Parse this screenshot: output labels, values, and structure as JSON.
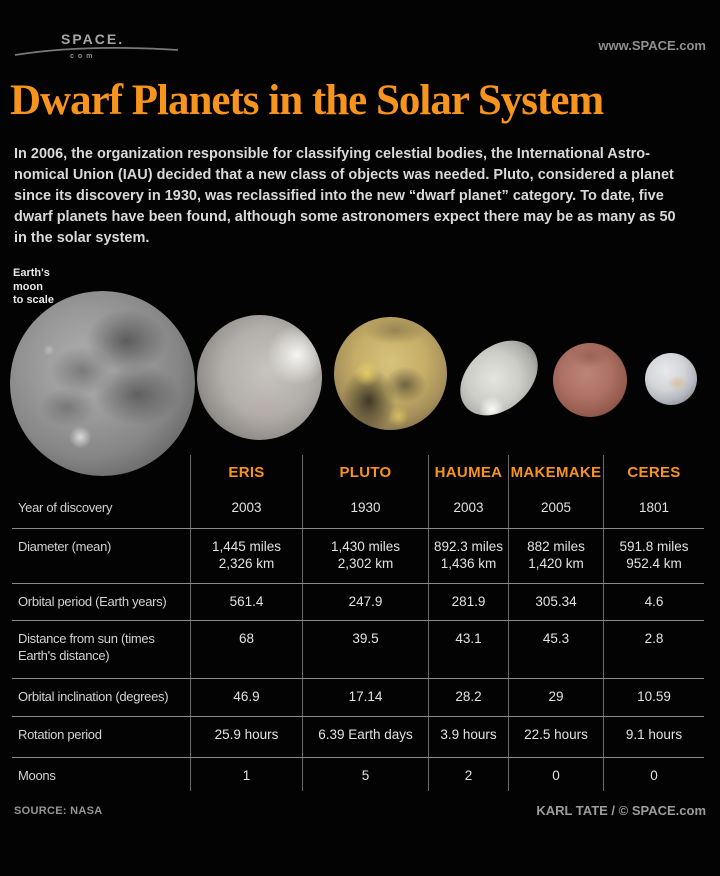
{
  "colors": {
    "background": "#030303",
    "accent_orange": "#f7941e",
    "body_text": "#d9d9d9",
    "table_line_horizontal": "#8a8a8a",
    "table_line_vertical": "#6b6b6b"
  },
  "masthead": {
    "logo_text": "SPACE.",
    "logo_sub": "com",
    "site_url": "www.SPACE.com"
  },
  "title": "Dwarf Planets in the Solar System",
  "intro_lines": [
    "In 2006, the organization responsible for classifying celestial bodies, the International Astro-",
    "nomical Union (IAU) decided that a new class of objects was needed. Pluto, considered a planet",
    "since its discovery in 1930, was reclassified into the new “dwarf planet” category. To date, five",
    "dwarf planets have been found, although some astronomers expect there may be as many as 50",
    "in the solar system."
  ],
  "figures": {
    "note_lines": [
      "Earth's",
      "moon",
      "to scale"
    ],
    "items": [
      "Earth's moon",
      "Eris",
      "Pluto",
      "Haumea",
      "Makemake",
      "Ceres"
    ]
  },
  "table": {
    "columns": [
      "ERIS",
      "PLUTO",
      "HAUMEA",
      "MAKEMAKE",
      "CERES"
    ],
    "rows": [
      {
        "label_lines": [
          "Year of discovery"
        ],
        "values": [
          [
            "2003"
          ],
          [
            "1930"
          ],
          [
            "2003"
          ],
          [
            "2005"
          ],
          [
            "1801"
          ]
        ]
      },
      {
        "label_lines": [
          "Diameter (mean)"
        ],
        "values": [
          [
            "1,445 miles",
            "2,326 km"
          ],
          [
            "1,430 miles",
            "2,302 km"
          ],
          [
            "892.3 miles",
            "1,436 km"
          ],
          [
            "882 miles",
            "1,420 km"
          ],
          [
            "591.8 miles",
            "952.4 km"
          ]
        ]
      },
      {
        "label_lines": [
          "Orbital period (Earth years)"
        ],
        "values": [
          [
            "561.4"
          ],
          [
            "247.9"
          ],
          [
            "281.9"
          ],
          [
            "305.34"
          ],
          [
            "4.6"
          ]
        ]
      },
      {
        "label_lines": [
          "Distance from sun (times",
          "Earth's distance)"
        ],
        "values": [
          [
            "68"
          ],
          [
            "39.5"
          ],
          [
            "43.1"
          ],
          [
            "45.3"
          ],
          [
            "2.8"
          ]
        ]
      },
      {
        "label_lines": [
          "Orbital inclination (degrees)"
        ],
        "values": [
          [
            "46.9"
          ],
          [
            "17.14"
          ],
          [
            "28.2"
          ],
          [
            "29"
          ],
          [
            "10.59"
          ]
        ]
      },
      {
        "label_lines": [
          "Rotation period"
        ],
        "values": [
          [
            "25.9 hours"
          ],
          [
            "6.39 Earth days"
          ],
          [
            "3.9 hours"
          ],
          [
            "22.5 hours"
          ],
          [
            "9.1 hours"
          ]
        ]
      },
      {
        "label_lines": [
          "Moons"
        ],
        "values": [
          [
            "1"
          ],
          [
            "5"
          ],
          [
            "2"
          ],
          [
            "0"
          ],
          [
            "0"
          ]
        ]
      }
    ]
  },
  "footer": {
    "source": "SOURCE: NASA",
    "credit": "KARL TATE / © SPACE.com"
  }
}
